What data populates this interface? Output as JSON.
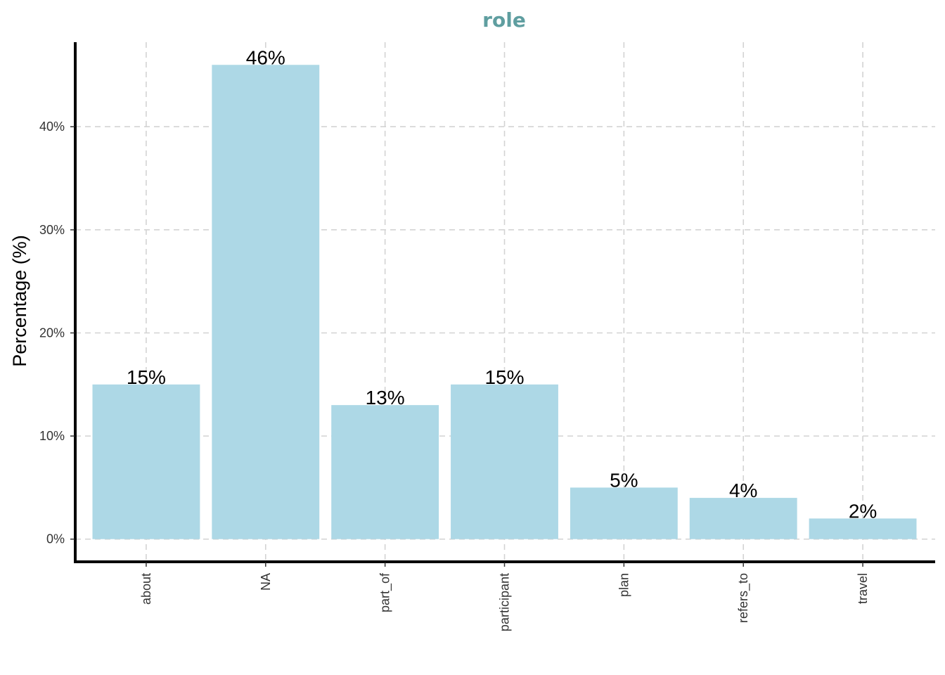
{
  "chart_data": {
    "type": "bar",
    "title": "role",
    "xlabel": "",
    "ylabel": "Percentage (%)",
    "categories": [
      "about",
      "NA",
      "part_of",
      "participant",
      "plan",
      "refers_to",
      "travel"
    ],
    "values": [
      15,
      46,
      13,
      15,
      5,
      4,
      2
    ],
    "data_labels": [
      "15%",
      "46%",
      "13%",
      "15%",
      "5%",
      "4%",
      "2%"
    ],
    "y_ticks": [
      0,
      10,
      20,
      30,
      40
    ],
    "y_tick_labels": [
      "0%",
      "10%",
      "20%",
      "30%",
      "40%"
    ],
    "ylim": [
      -2.2,
      48.2
    ],
    "grid": true,
    "legend": "none",
    "colors": {
      "bar": "#add8e6",
      "title": "#5f9ea0",
      "grid": "#d3d3d3",
      "axis": "#000000"
    }
  }
}
